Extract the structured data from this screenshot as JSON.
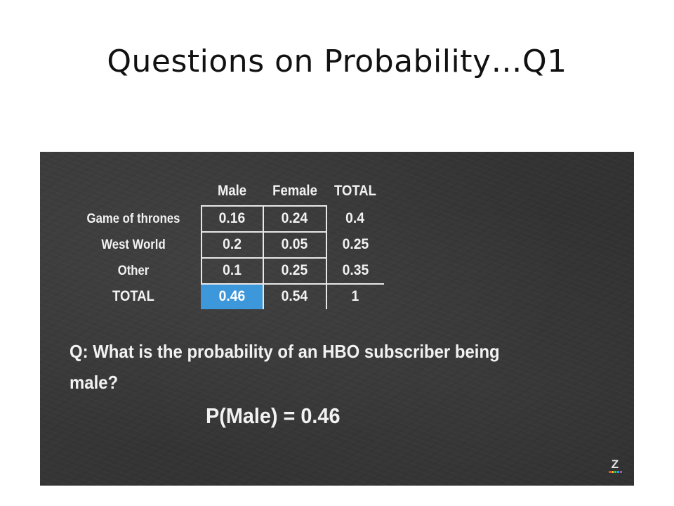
{
  "slide": {
    "title": "Questions on Probability…Q1"
  },
  "table": {
    "columns": [
      "Male",
      "Female",
      "TOTAL"
    ],
    "rows": [
      {
        "label": "Game of thrones",
        "values": [
          "0.16",
          "0.24",
          "0.4"
        ]
      },
      {
        "label": "West World",
        "values": [
          "0.2",
          "0.05",
          "0.25"
        ]
      },
      {
        "label": "Other",
        "values": [
          "0.1",
          "0.25",
          "0.35"
        ]
      },
      {
        "label": "TOTAL",
        "values": [
          "0.46",
          "0.54",
          "1"
        ]
      }
    ],
    "highlight_color": "#3d97db"
  },
  "question": "Q: What is the probability of an HBO subscriber being male?",
  "answer": "P(Male) = 0.46",
  "logo": {
    "icon": "z-logo-icon",
    "glyph": "Z"
  }
}
